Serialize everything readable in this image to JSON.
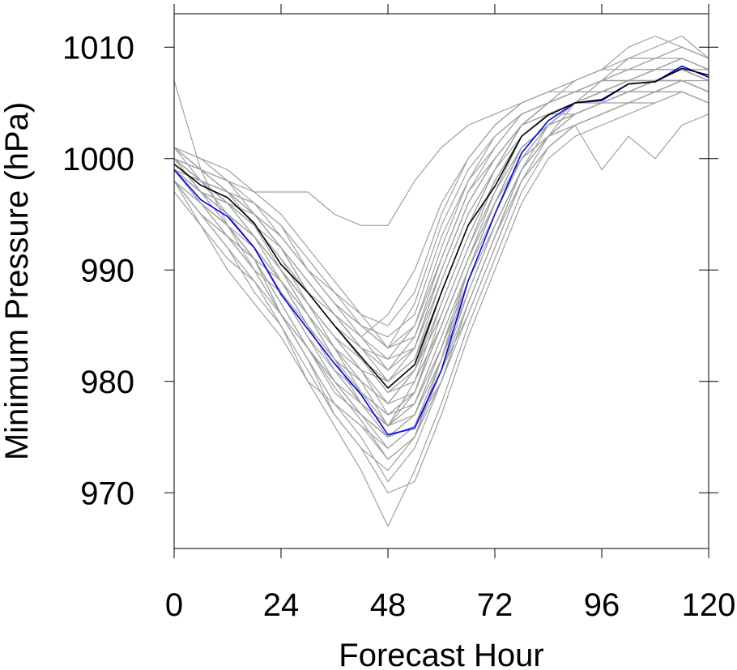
{
  "chart_data": {
    "type": "line",
    "title": "",
    "xlabel": "Forecast Hour",
    "ylabel": "Minimum Pressure (hPa)",
    "xlim": [
      0,
      120
    ],
    "ylim": [
      965,
      1013
    ],
    "xticks": [
      0,
      24,
      48,
      72,
      96,
      120
    ],
    "yticks": [
      970,
      980,
      990,
      1000,
      1010
    ],
    "grid": false,
    "legend": "none",
    "x": [
      0,
      6,
      12,
      18,
      24,
      30,
      36,
      42,
      48,
      54,
      60,
      66,
      72,
      78,
      84,
      90,
      96,
      102,
      108,
      114,
      120
    ],
    "series": [
      {
        "color": "#0000ff",
        "values": [
          999.0,
          996.3,
          994.8,
          992.0,
          987.8,
          984.7,
          981.6,
          978.8,
          975.2,
          975.8,
          981.0,
          989.0,
          995.0,
          1000.5,
          1003.4,
          1005.0,
          1005.2,
          1006.7,
          1006.9,
          1008.3,
          1007.3
        ]
      },
      {
        "color": "#000000",
        "values": [
          999.5,
          997.6,
          996.5,
          994.2,
          990.5,
          988.0,
          985.0,
          982.2,
          979.4,
          981.5,
          988.0,
          994.0,
          997.5,
          1002.0,
          1003.9,
          1005.0,
          1005.3,
          1006.7,
          1006.9,
          1008.1,
          1007.5
        ]
      },
      {
        "color": "#a0a0a0",
        "values": [
          1007.0,
          999.0,
          994.0,
          991.0,
          987.0,
          983.0,
          979.5,
          976.5,
          973.0,
          975.0,
          982.0,
          990.0,
          996.0,
          1001.0,
          1003.0,
          1004.0,
          1005.0,
          1006.0,
          1007.0,
          1008.0,
          1007.0
        ]
      },
      {
        "color": "#a0a0a0",
        "values": [
          1000.0,
          998.0,
          997.0,
          996.0,
          994.0,
          990.0,
          987.0,
          985.0,
          983.0,
          984.0,
          991.0,
          997.0,
          1000.0,
          1003.0,
          1004.0,
          1005.0,
          1006.0,
          1007.0,
          1007.0,
          1008.0,
          1007.0
        ]
      },
      {
        "color": "#a0a0a0",
        "values": [
          998.0,
          995.0,
          993.0,
          991.0,
          986.0,
          982.0,
          978.0,
          975.0,
          971.0,
          974.0,
          980.0,
          987.0,
          993.0,
          999.0,
          1002.0,
          1004.0,
          1005.0,
          1006.0,
          1006.0,
          1007.0,
          1006.0
        ]
      },
      {
        "color": "#a0a0a0",
        "values": [
          1001.0,
          1000.0,
          999.0,
          997.0,
          995.0,
          992.0,
          989.0,
          986.0,
          983.0,
          987.0,
          994.0,
          999.0,
          1002.0,
          1004.0,
          1005.0,
          1006.0,
          1007.0,
          1008.0,
          1008.0,
          1009.0,
          1008.0
        ]
      },
      {
        "color": "#a0a0a0",
        "values": [
          999.0,
          997.0,
          995.0,
          993.0,
          990.0,
          986.0,
          982.0,
          978.0,
          976.0,
          977.0,
          983.0,
          990.0,
          996.0,
          1001.0,
          1003.0,
          1004.0,
          1005.0,
          1006.0,
          1007.0,
          1008.0,
          1007.0
        ]
      },
      {
        "color": "#a0a0a0",
        "values": [
          998.0,
          994.0,
          990.0,
          987.0,
          984.0,
          980.0,
          976.0,
          972.0,
          967.0,
          972.0,
          978.0,
          985.0,
          991.0,
          997.0,
          1001.0,
          1003.0,
          1004.0,
          1005.0,
          1006.0,
          1007.0,
          1006.0
        ]
      },
      {
        "color": "#a0a0a0",
        "values": [
          1000.0,
          999.0,
          998.0,
          997.0,
          997.0,
          997.0,
          995.0,
          994.0,
          994.0,
          998.0,
          1001.0,
          1003.0,
          1004.0,
          1005.0,
          1006.0,
          1006.0,
          1007.0,
          1007.0,
          1008.0,
          1009.0,
          1008.0
        ]
      },
      {
        "color": "#a0a0a0",
        "values": [
          999.0,
          997.0,
          995.0,
          992.0,
          988.0,
          984.0,
          980.0,
          977.0,
          974.0,
          976.0,
          982.0,
          989.0,
          995.0,
          1000.0,
          1002.0,
          1003.0,
          999.0,
          1002.0,
          1000.0,
          1003.0,
          1004.0
        ]
      },
      {
        "color": "#a0a0a0",
        "values": [
          1001.0,
          998.0,
          996.0,
          993.0,
          989.0,
          985.0,
          981.0,
          978.0,
          975.0,
          976.0,
          981.0,
          986.0,
          992.0,
          998.0,
          1002.0,
          1005.0,
          1007.0,
          1009.0,
          1010.0,
          1011.0,
          1009.0
        ]
      },
      {
        "color": "#a0a0a0",
        "values": [
          999.0,
          996.0,
          994.0,
          991.0,
          986.0,
          982.0,
          977.0,
          974.0,
          970.0,
          971.0,
          977.0,
          984.0,
          990.0,
          996.0,
          1000.0,
          1002.0,
          1003.0,
          1004.0,
          1005.0,
          1006.0,
          1005.0
        ]
      },
      {
        "color": "#a0a0a0",
        "values": [
          1000.0,
          999.0,
          997.0,
          995.0,
          992.0,
          988.0,
          985.0,
          982.0,
          979.0,
          981.0,
          988.0,
          994.0,
          999.0,
          1003.0,
          1005.0,
          1007.0,
          1008.0,
          1010.0,
          1011.0,
          1010.0,
          1009.0
        ]
      },
      {
        "color": "#a0a0a0",
        "values": [
          998.0,
          995.0,
          992.0,
          988.0,
          985.0,
          981.0,
          977.0,
          974.0,
          972.0,
          975.0,
          980.0,
          987.0,
          993.0,
          999.0,
          1002.0,
          1004.0,
          1005.0,
          1006.0,
          1006.0,
          1007.0,
          1006.0
        ]
      },
      {
        "color": "#a0a0a0",
        "values": [
          999.0,
          998.0,
          996.0,
          994.0,
          991.0,
          987.0,
          984.0,
          981.0,
          978.0,
          979.0,
          985.0,
          991.0,
          997.0,
          1002.0,
          1004.0,
          1005.0,
          1006.0,
          1007.0,
          1007.0,
          1008.0,
          1008.0
        ]
      },
      {
        "color": "#a0a0a0",
        "values": [
          1000.0,
          997.0,
          994.0,
          991.0,
          987.0,
          983.0,
          979.0,
          977.0,
          975.0,
          977.0,
          983.0,
          989.0,
          994.0,
          999.0,
          1003.0,
          1005.0,
          1006.0,
          1007.0,
          1008.0,
          1008.0,
          1007.0
        ]
      },
      {
        "color": "#a0a0a0",
        "values": [
          999.0,
          996.0,
          993.0,
          990.0,
          988.0,
          985.0,
          982.0,
          979.0,
          977.0,
          979.0,
          986.0,
          992.0,
          998.0,
          1002.0,
          1004.0,
          1005.0,
          1005.0,
          1006.0,
          1007.0,
          1007.0,
          1006.0
        ]
      },
      {
        "color": "#a0a0a0",
        "values": [
          1001.0,
          1000.0,
          998.0,
          995.0,
          992.0,
          989.0,
          986.0,
          983.0,
          981.0,
          983.0,
          990.0,
          996.0,
          1000.0,
          1003.0,
          1005.0,
          1006.0,
          1006.0,
          1007.0,
          1008.0,
          1009.0,
          1008.0
        ]
      },
      {
        "color": "#a0a0a0",
        "values": [
          998.0,
          995.0,
          993.0,
          991.0,
          989.0,
          986.0,
          983.0,
          980.0,
          976.0,
          978.0,
          984.0,
          990.0,
          996.0,
          1001.0,
          1003.0,
          1004.0,
          1005.0,
          1005.0,
          1006.0,
          1007.0,
          1006.0
        ]
      },
      {
        "color": "#a0a0a0",
        "values": [
          999.0,
          997.0,
          996.0,
          995.0,
          993.0,
          990.0,
          987.0,
          984.0,
          982.0,
          983.0,
          989.0,
          995.0,
          999.0,
          1003.0,
          1004.0,
          1005.0,
          1006.0,
          1006.0,
          1007.0,
          1007.0,
          1007.0
        ]
      },
      {
        "color": "#a0a0a0",
        "values": [
          1000.0,
          998.0,
          995.0,
          992.0,
          989.0,
          985.0,
          981.0,
          978.0,
          976.0,
          978.0,
          983.0,
          989.0,
          995.0,
          1000.0,
          1003.0,
          1005.0,
          1006.0,
          1007.0,
          1008.0,
          1009.0,
          1008.0
        ]
      },
      {
        "color": "#a0a0a0",
        "values": [
          997.0,
          994.0,
          991.0,
          989.0,
          985.0,
          980.0,
          978.0,
          976.0,
          974.0,
          976.0,
          981.0,
          987.0,
          993.0,
          998.0,
          1001.0,
          1003.0,
          1004.0,
          1005.0,
          1006.0,
          1006.0,
          1005.0
        ]
      },
      {
        "color": "#a0a0a0",
        "values": [
          999.0,
          998.0,
          997.0,
          996.0,
          994.0,
          991.0,
          988.0,
          985.0,
          983.0,
          985.0,
          992.0,
          998.0,
          1002.0,
          1004.0,
          1005.0,
          1006.0,
          1007.0,
          1007.0,
          1008.0,
          1008.0,
          1007.0
        ]
      },
      {
        "color": "#a0a0a0",
        "values": [
          1000.0,
          997.0,
          995.0,
          993.0,
          990.0,
          986.0,
          982.0,
          980.0,
          978.0,
          981.0,
          986.0,
          992.0,
          997.0,
          1001.0,
          1003.0,
          1004.0,
          1005.0,
          1006.0,
          1007.0,
          1007.0,
          1006.0
        ]
      },
      {
        "color": "#a0a0a0",
        "values": [
          999.0,
          996.0,
          994.0,
          992.0,
          989.0,
          986.0,
          983.0,
          979.0,
          976.0,
          980.0,
          987.0,
          993.0,
          998.0,
          1002.0,
          1004.0,
          1004.0,
          1005.0,
          1006.0,
          1006.0,
          1007.0,
          1006.0
        ]
      },
      {
        "color": "#a0a0a0",
        "values": [
          1001.0,
          999.0,
          997.0,
          994.0,
          991.0,
          988.0,
          985.0,
          983.0,
          980.0,
          982.0,
          988.0,
          994.0,
          999.0,
          1002.0,
          1004.0,
          1005.0,
          1006.0,
          1007.0,
          1008.0,
          1008.0,
          1008.0
        ]
      },
      {
        "color": "#a0a0a0",
        "values": [
          998.0,
          996.0,
          994.0,
          990.0,
          986.0,
          983.0,
          980.0,
          977.0,
          975.0,
          977.0,
          982.0,
          988.0,
          994.0,
          999.0,
          1002.0,
          1004.0,
          1005.0,
          1006.0,
          1007.0,
          1007.0,
          1006.0
        ]
      },
      {
        "color": "#a0a0a0",
        "values": [
          999.0,
          998.0,
          996.0,
          994.0,
          992.0,
          989.0,
          986.0,
          984.0,
          981.0,
          984.0,
          990.0,
          996.0,
          1000.0,
          1003.0,
          1005.0,
          1006.0,
          1007.0,
          1008.0,
          1009.0,
          1009.0,
          1008.0
        ]
      },
      {
        "color": "#a0a0a0",
        "values": [
          1000.0,
          998.0,
          996.0,
          993.0,
          990.0,
          987.0,
          984.0,
          982.0,
          979.0,
          980.0,
          985.0,
          991.0,
          996.0,
          1001.0,
          1003.0,
          1005.0,
          1006.0,
          1006.0,
          1007.0,
          1008.0,
          1007.0
        ]
      },
      {
        "color": "#a0a0a0",
        "values": [
          999.0,
          997.0,
          995.0,
          993.0,
          990.0,
          987.0,
          984.0,
          981.0,
          977.0,
          979.0,
          985.0,
          991.0,
          996.0,
          1000.0,
          1002.0,
          1003.0,
          1004.0,
          1005.0,
          1006.0,
          1006.0,
          1005.0
        ]
      },
      {
        "color": "#a0a0a0",
        "values": [
          1000.0,
          999.0,
          998.0,
          996.0,
          993.0,
          990.0,
          987.0,
          985.0,
          984.0,
          986.0,
          993.0,
          998.0,
          1001.0,
          1004.0,
          1005.0,
          1006.0,
          1007.0,
          1008.0,
          1008.0,
          1009.0,
          1008.0
        ]
      },
      {
        "color": "#a0a0a0",
        "values": [
          999.0,
          996.0,
          994.0,
          991.0,
          987.0,
          983.0,
          980.0,
          977.0,
          975.0,
          976.0,
          980.0,
          986.0,
          992.0,
          998.0,
          1001.0,
          1003.0,
          1004.0,
          1005.0,
          1006.0,
          1007.0,
          1006.0
        ]
      },
      {
        "color": "#a0a0a0",
        "values": [
          1000.0,
          998.0,
          997.0,
          995.0,
          992.0,
          988.0,
          985.0,
          982.0,
          980.0,
          982.0,
          989.0,
          995.0,
          999.0,
          1003.0,
          1005.0,
          1006.0,
          1006.0,
          1007.0,
          1008.0,
          1008.0,
          1007.0
        ]
      },
      {
        "color": "#a0a0a0",
        "values": [
          998.0,
          996.0,
          993.0,
          990.0,
          986.0,
          982.0,
          978.0,
          976.0,
          973.0,
          975.0,
          981.0,
          988.0,
          994.0,
          999.0,
          1002.0,
          1004.0,
          1005.0,
          1006.0,
          1006.0,
          1007.0,
          1006.0
        ]
      },
      {
        "color": "#a0a0a0",
        "values": [
          999.0,
          997.0,
          996.0,
          994.0,
          991.0,
          988.0,
          986.0,
          983.0,
          982.0,
          985.0,
          991.0,
          997.0,
          1001.0,
          1004.0,
          1005.0,
          1006.0,
          1007.0,
          1007.0,
          1008.0,
          1008.0,
          1007.0
        ]
      },
      {
        "color": "#a0a0a0",
        "values": [
          1000.0,
          997.0,
          995.0,
          992.0,
          988.0,
          984.0,
          981.0,
          979.0,
          977.0,
          978.0,
          984.0,
          990.0,
          995.0,
          1000.0,
          1003.0,
          1004.0,
          1005.0,
          1006.0,
          1007.0,
          1007.0,
          1006.0
        ]
      },
      {
        "color": "#a0a0a0",
        "values": [
          999.0,
          998.0,
          997.0,
          995.0,
          993.0,
          990.0,
          988.0,
          986.0,
          985.0,
          988.0,
          995.0,
          1000.0,
          1003.0,
          1005.0,
          1006.0,
          1007.0,
          1008.0,
          1008.0,
          1009.0,
          1010.0,
          1009.0
        ]
      },
      {
        "color": "#a0a0a0",
        "values": [
          998.0,
          995.0,
          992.0,
          989.0,
          986.0,
          983.0,
          980.0,
          978.0,
          976.0,
          979.0,
          985.0,
          991.0,
          996.0,
          1000.0,
          1002.0,
          1003.0,
          1004.0,
          1005.0,
          1005.0,
          1006.0,
          1005.0
        ]
      },
      {
        "color": "#a0a0a0",
        "values": [
          1000.0,
          998.0,
          996.0,
          994.0,
          990.0,
          987.0,
          983.0,
          981.0,
          980.0,
          983.0,
          990.0,
          996.0,
          1000.0,
          1003.0,
          1004.0,
          1005.0,
          1006.0,
          1007.0,
          1007.0,
          1008.0,
          1007.0
        ]
      },
      {
        "color": "#a0a0a0",
        "values": [
          999.0,
          997.0,
          995.0,
          992.0,
          989.0,
          985.0,
          982.0,
          980.0,
          978.0,
          981.0,
          987.0,
          993.0,
          998.0,
          1002.0,
          1004.0,
          1005.0,
          1006.0,
          1007.0,
          1008.0,
          1008.0,
          1007.0
        ]
      },
      {
        "color": "#a0a0a0",
        "values": [
          1001.0,
          999.0,
          997.0,
          995.0,
          992.0,
          989.0,
          986.0,
          984.0,
          986.0,
          990.0,
          996.0,
          1000.0,
          1003.0,
          1005.0,
          1006.0,
          1007.0,
          1008.0,
          1009.0,
          1009.0,
          1010.0,
          1009.0
        ]
      }
    ]
  }
}
